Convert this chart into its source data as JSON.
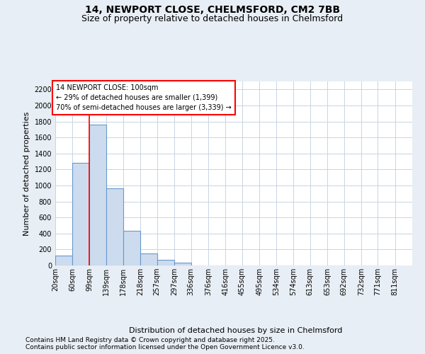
{
  "title_line1": "14, NEWPORT CLOSE, CHELMSFORD, CM2 7BB",
  "title_line2": "Size of property relative to detached houses in Chelmsford",
  "xlabel": "Distribution of detached houses by size in Chelmsford",
  "ylabel": "Number of detached properties",
  "footnote1": "Contains HM Land Registry data © Crown copyright and database right 2025.",
  "footnote2": "Contains public sector information licensed under the Open Government Licence v3.0.",
  "annotation_title": "14 NEWPORT CLOSE: 100sqm",
  "annotation_line2": "← 29% of detached houses are smaller (1,399)",
  "annotation_line3": "70% of semi-detached houses are larger (3,339) →",
  "bin_edges": [
    20,
    60,
    99,
    139,
    178,
    218,
    257,
    297,
    336,
    376,
    416,
    455,
    495,
    534,
    574,
    613,
    653,
    692,
    732,
    771,
    811
  ],
  "bar_values": [
    120,
    1280,
    1760,
    960,
    430,
    150,
    75,
    35,
    0,
    0,
    0,
    0,
    0,
    0,
    0,
    0,
    0,
    0,
    0,
    0
  ],
  "bar_color": "#ccdcee",
  "bar_edge_color": "#6699cc",
  "red_line_x": 99,
  "ylim_max": 2300,
  "yticks": [
    0,
    200,
    400,
    600,
    800,
    1000,
    1200,
    1400,
    1600,
    1800,
    2000,
    2200
  ],
  "background_color": "#e8eef5",
  "plot_bg_color": "#ffffff",
  "grid_color": "#c8d4e4",
  "title_fontsize": 10,
  "subtitle_fontsize": 9,
  "tick_fontsize": 7,
  "label_fontsize": 8,
  "footnote_fontsize": 6.5,
  "annotation_fontsize": 7
}
